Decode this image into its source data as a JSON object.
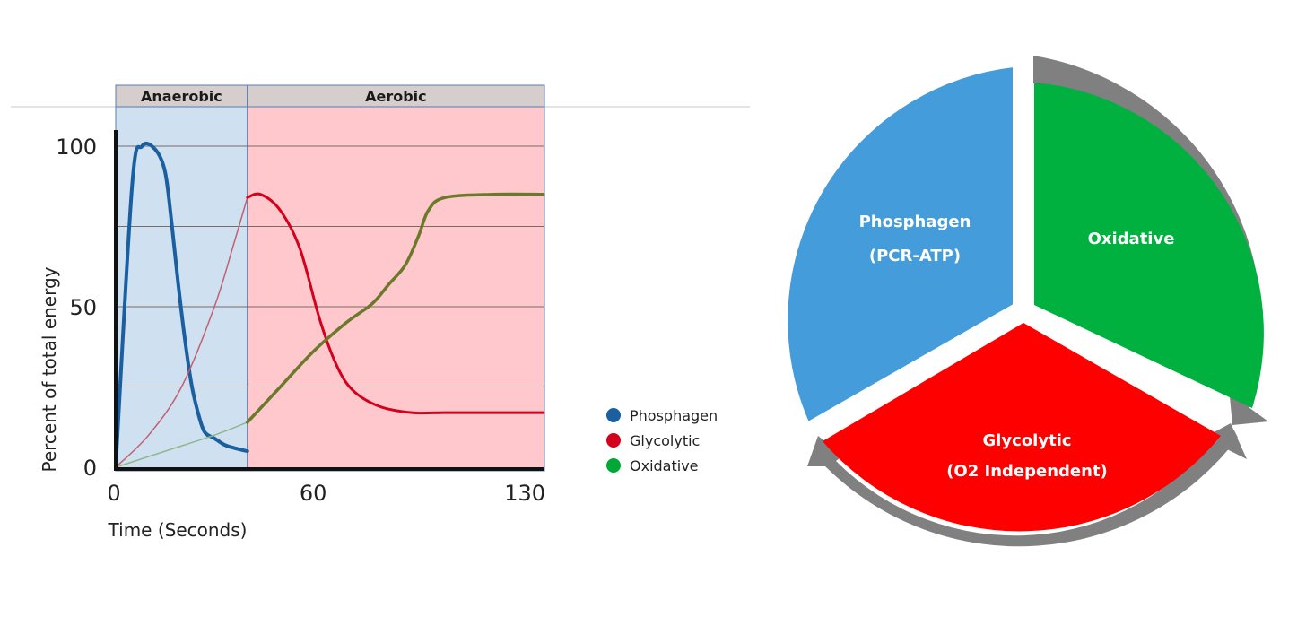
{
  "chart_data": {
    "type": "line",
    "title": "",
    "xlabel": "Time (Seconds)",
    "ylabel": "Percent of total energy",
    "xlim": [
      0,
      130
    ],
    "ylim": [
      0,
      100
    ],
    "x_ticks": [
      0,
      60,
      130
    ],
    "x_tick_labels": [
      "0",
      "60",
      "130"
    ],
    "y_ticks": [
      0,
      50,
      100
    ],
    "y_tick_labels": [
      "0",
      "50",
      "100"
    ],
    "grid": true,
    "legend": "right",
    "zones": [
      {
        "label": "Anaerobic",
        "x_start": 0,
        "x_end": 40,
        "color": "#cfe0f0"
      },
      {
        "label": "Aerobic",
        "x_start": 40,
        "x_end": 147,
        "color": "#ffc8cc"
      }
    ],
    "series": [
      {
        "name": "Phosphagen",
        "color": "#1a5fa0",
        "x": [
          0,
          5,
          8,
          12,
          15,
          17,
          19,
          21,
          23,
          25,
          27,
          30,
          33,
          36,
          40
        ],
        "y": [
          0,
          88,
          100,
          99,
          92,
          76,
          57,
          40,
          26,
          17,
          11,
          9,
          7,
          6,
          5
        ]
      },
      {
        "name": "Glycolytic",
        "color": "#d4001c",
        "x": [
          0,
          10,
          20,
          30,
          36,
          40,
          44,
          50,
          56,
          62,
          67,
          72,
          80,
          90,
          100,
          115,
          130
        ],
        "y": [
          0,
          10,
          25,
          50,
          70,
          84,
          85,
          80,
          68,
          46,
          32,
          24,
          19,
          17,
          17,
          17,
          17
        ]
      },
      {
        "name": "Oxidative",
        "color": "#00a836",
        "x": [
          0,
          15,
          30,
          40,
          50,
          60,
          70,
          78,
          83,
          88,
          92,
          95,
          100,
          115,
          130
        ],
        "y": [
          0,
          5,
          10,
          14,
          25,
          36,
          45,
          51,
          57,
          63,
          72,
          80,
          84,
          85,
          85
        ]
      }
    ]
  },
  "cycle_diagram": {
    "segments": [
      {
        "line1": "Phosphagen",
        "line2": "(PCR-ATP)",
        "color": "#459cda"
      },
      {
        "line1": "Oxidative",
        "line2": "",
        "color": "#00b140"
      },
      {
        "line1": "Glycolytic",
        "line2": "(O2 Independent)",
        "color": "#ff0000"
      }
    ],
    "arrow_color": "#808080"
  }
}
